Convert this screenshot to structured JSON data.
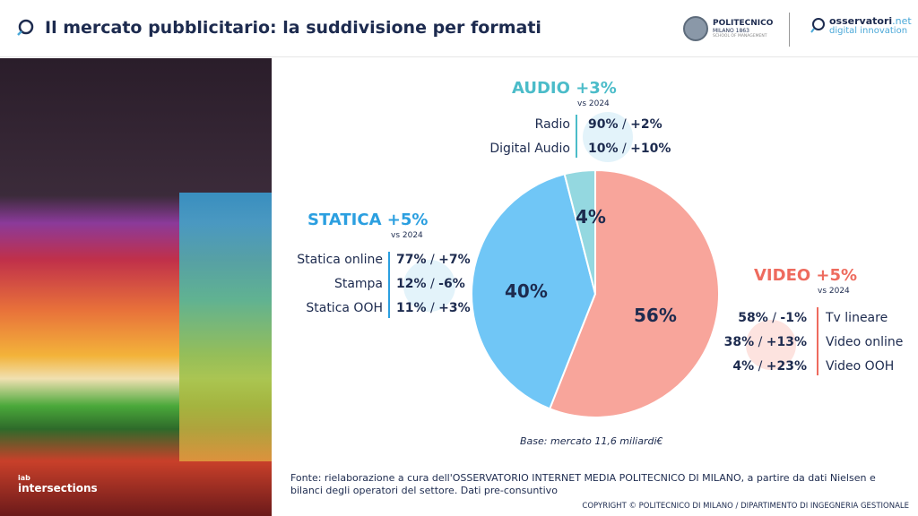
{
  "header": {
    "title": "Il mercato pubblicitario: la suddivisione per formati",
    "logo1_line1": "POLITECNICO",
    "logo1_line2": "MILANO 1863",
    "logo1_line3": "SCHOOL OF MANAGEMENT",
    "logo2_line1": "osservatori",
    "logo2_net": ".net",
    "logo2_line2": "digital innovation"
  },
  "photo": {
    "logo": "intersections",
    "logo_small": "iab"
  },
  "audio": {
    "title": "AUDIO +3%",
    "vs": "vs 2024",
    "color": "#4bbcc9",
    "rows": [
      {
        "label": "Radio",
        "share": "90%",
        "growth": "+2%"
      },
      {
        "label": "Digital Audio",
        "share": "10%",
        "growth": "+10%"
      }
    ]
  },
  "statica": {
    "title": "STATICA +5%",
    "vs": "vs 2024",
    "color": "#2b9fe0",
    "rows": [
      {
        "label": "Statica online",
        "share": "77%",
        "growth": "+7%"
      },
      {
        "label": "Stampa",
        "share": "12%",
        "growth": "-6%"
      },
      {
        "label": "Statica OOH",
        "share": "11%",
        "growth": "+3%"
      }
    ]
  },
  "video": {
    "title": "VIDEO +5%",
    "vs": "vs 2024",
    "color": "#ee6b5e",
    "rows": [
      {
        "label": "Tv lineare",
        "share": "58%",
        "growth": "-1%"
      },
      {
        "label": "Video online",
        "share": "38%",
        "growth": "+13%"
      },
      {
        "label": "Video OOH",
        "share": "4%",
        "growth": "+23%"
      }
    ]
  },
  "chart_data": {
    "type": "pie",
    "slices": [
      {
        "label": "Video",
        "value": 56,
        "text": "56%",
        "color": "#f8a59b"
      },
      {
        "label": "Statica",
        "value": 40,
        "text": "40%",
        "color": "#70c6f6"
      },
      {
        "label": "Audio",
        "value": 4,
        "text": "4%",
        "color": "#94d8e0"
      }
    ]
  },
  "base": "Base: mercato 11,6 miliardi€",
  "fonte": "Fonte: rielaborazione a cura dell'OSSERVATORIO INTERNET MEDIA POLITECNICO DI MILANO, a partire da dati Nielsen e bilanci degli operatori del settore. Dati pre-consuntivo",
  "copyright": "COPYRIGHT © POLITECNICO DI MILANO / DIPARTIMENTO DI INGEGNERIA GESTIONALE"
}
